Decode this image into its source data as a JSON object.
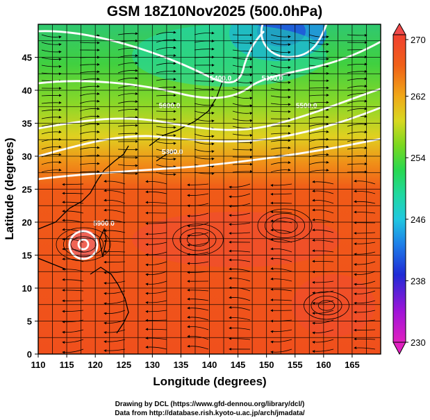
{
  "title": "GSM 18Z10Nov2025 (500.0hPa)",
  "xlabel": "Longitude (degrees)",
  "ylabel": "Latitude  (degrees)",
  "credits": [
    "Drawing by DCL (https://www.gfd-dennou.org/library/dcl/)",
    "Data from http://database.rish.kyoto-u.ac.jp/arch/jmadata/"
  ],
  "chart_data": {
    "type": "heatmap",
    "x_ticks": [
      110,
      115,
      120,
      125,
      130,
      135,
      140,
      145,
      150,
      155,
      160,
      165
    ],
    "y_ticks": [
      0,
      5,
      10,
      15,
      20,
      25,
      30,
      35,
      40,
      45
    ],
    "xlim": [
      110,
      170
    ],
    "ylim": [
      0,
      50
    ],
    "colorbar": {
      "ticks": [
        230,
        238,
        246,
        254,
        262,
        270
      ],
      "range": [
        230,
        270
      ],
      "colors": [
        "#e020c0",
        "#8a14d8",
        "#1f2bd6",
        "#1e90e8",
        "#20d8d0",
        "#28d860",
        "#6ed820",
        "#c8d820",
        "#f0b018",
        "#f07818",
        "#f04818",
        "#f03c2c"
      ]
    },
    "contour_labels": [
      {
        "text": "5400.0",
        "lon": 142,
        "lat": 41.5
      },
      {
        "text": "5300.0",
        "lon": 151,
        "lat": 41.5
      },
      {
        "text": "5500.0",
        "lon": 157,
        "lat": 37.3
      },
      {
        "text": "5600.0",
        "lon": 133,
        "lat": 37.3
      },
      {
        "text": "5800.0",
        "lon": 133.5,
        "lat": 30.3
      },
      {
        "text": "5900.0",
        "lon": 121.5,
        "lat": 19.5
      }
    ]
  }
}
